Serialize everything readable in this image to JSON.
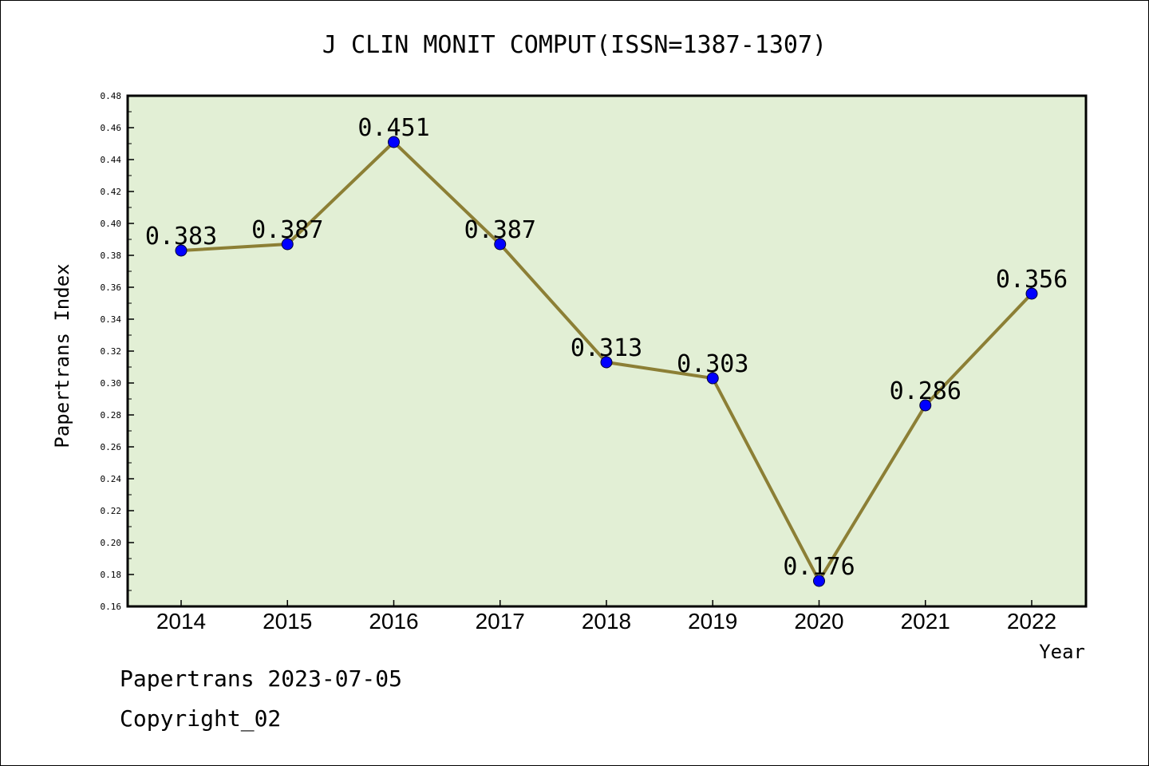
{
  "chart_data": {
    "type": "line",
    "title": "J CLIN MONIT COMPUT(ISSN=1387-1307)",
    "xlabel": "Year",
    "ylabel": "Papertrans Index",
    "categories": [
      "2014",
      "2015",
      "2016",
      "2017",
      "2018",
      "2019",
      "2020",
      "2021",
      "2022"
    ],
    "values": [
      0.383,
      0.387,
      0.451,
      0.387,
      0.313,
      0.303,
      0.176,
      0.286,
      0.356
    ],
    "data_labels": [
      "0.383",
      "0.387",
      "0.451",
      "0.387",
      "0.313",
      "0.303",
      "0.176",
      "0.286",
      "0.356"
    ],
    "ylim": [
      0.16,
      0.48
    ],
    "yticks": [
      "0.16",
      "0.18",
      "0.20",
      "0.22",
      "0.24",
      "0.26",
      "0.28",
      "0.30",
      "0.32",
      "0.34",
      "0.36",
      "0.38",
      "0.40",
      "0.42",
      "0.44",
      "0.46",
      "0.48"
    ],
    "grid": false,
    "legend": "none",
    "colors": {
      "plot_background": "#e2efd5",
      "line": "#8c7f35",
      "marker": "#0000ff",
      "frame": "#000000"
    }
  },
  "footer": {
    "date_text": "Papertrans 2023-07-05",
    "copyright_text": "Copyright_02"
  }
}
